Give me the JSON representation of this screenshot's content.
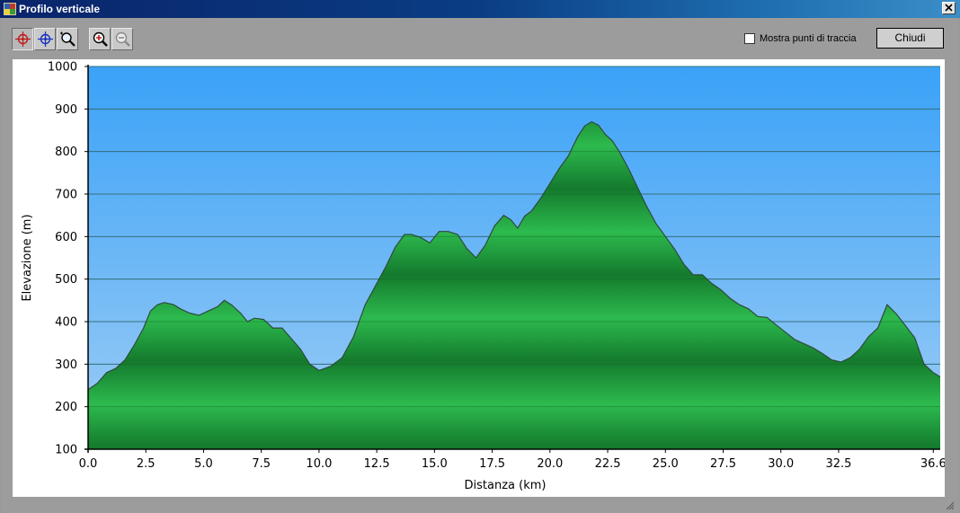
{
  "window": {
    "title": "Profilo verticale"
  },
  "toolbar": {
    "tools": [
      {
        "name": "crosshair-red-tool",
        "active": true
      },
      {
        "name": "crosshair-blue-tool",
        "active": false
      },
      {
        "name": "zoom-select-tool",
        "active": false
      },
      {
        "name": "zoom-in-tool",
        "active": false
      },
      {
        "name": "zoom-out-tool",
        "active": false
      }
    ],
    "show_points_label": "Mostra punti di traccia",
    "show_points_checked": false,
    "close_label": "Chiudi"
  },
  "colors": {
    "sky_top": "#3aa2f7",
    "sky_bottom": "#9ecdf6",
    "terrain_light": "#2dba4e",
    "terrain_dark": "#147a2d",
    "outline": "#2f4a3a"
  },
  "chart_data": {
    "type": "area",
    "xlabel": "Distanza    (km)",
    "ylabel": "Elevazione (m)",
    "xlim": [
      0,
      36.9
    ],
    "ylim": [
      100,
      1000
    ],
    "xticks": [
      "0.0",
      "2.5",
      "5.0",
      "7.5",
      "10.0",
      "12.5",
      "15.0",
      "17.5",
      "20.0",
      "22.5",
      "25.0",
      "27.5",
      "30.0",
      "32.5",
      "36.6"
    ],
    "xtick_values": [
      0,
      2.5,
      5,
      7.5,
      10,
      12.5,
      15,
      17.5,
      20,
      22.5,
      25,
      27.5,
      30,
      32.5,
      36.6
    ],
    "yticks": [
      "100",
      "200",
      "300",
      "400",
      "500",
      "600",
      "700",
      "800",
      "900",
      "1000"
    ],
    "ytick_values": [
      100,
      200,
      300,
      400,
      500,
      600,
      700,
      800,
      900,
      1000
    ],
    "grid": true,
    "x": [
      0,
      0.4,
      0.8,
      1.2,
      1.6,
      2.0,
      2.4,
      2.7,
      3.0,
      3.3,
      3.7,
      4.0,
      4.4,
      4.8,
      5.2,
      5.6,
      5.9,
      6.2,
      6.6,
      6.9,
      7.2,
      7.6,
      8.0,
      8.4,
      8.8,
      9.2,
      9.6,
      10.0,
      10.5,
      11.0,
      11.5,
      12.0,
      12.4,
      12.9,
      13.3,
      13.7,
      14.0,
      14.4,
      14.8,
      15.2,
      15.6,
      16.0,
      16.4,
      16.8,
      17.2,
      17.6,
      18.0,
      18.3,
      18.6,
      18.9,
      19.2,
      19.6,
      20.0,
      20.4,
      20.8,
      21.2,
      21.5,
      21.8,
      22.1,
      22.4,
      22.7,
      23.0,
      23.4,
      23.8,
      24.2,
      24.6,
      25.0,
      25.4,
      25.8,
      26.2,
      26.6,
      27.0,
      27.4,
      27.8,
      28.2,
      28.6,
      29.0,
      29.4,
      29.8,
      30.2,
      30.6,
      31.0,
      31.4,
      31.8,
      32.2,
      32.6,
      33.0,
      33.4,
      33.8,
      34.2,
      34.6,
      35.0,
      35.4,
      35.8,
      36.2,
      36.6,
      36.9
    ],
    "y": [
      240,
      255,
      280,
      290,
      310,
      345,
      385,
      425,
      440,
      445,
      440,
      430,
      420,
      415,
      425,
      435,
      450,
      440,
      420,
      400,
      408,
      405,
      385,
      385,
      360,
      335,
      300,
      285,
      295,
      315,
      365,
      440,
      480,
      530,
      575,
      605,
      605,
      598,
      585,
      612,
      612,
      605,
      572,
      550,
      580,
      625,
      650,
      640,
      620,
      648,
      660,
      690,
      725,
      760,
      790,
      835,
      860,
      870,
      862,
      840,
      825,
      800,
      760,
      715,
      670,
      630,
      600,
      570,
      535,
      510,
      510,
      490,
      475,
      455,
      440,
      430,
      412,
      410,
      392,
      375,
      358,
      348,
      338,
      325,
      310,
      305,
      315,
      335,
      365,
      385,
      440,
      418,
      390,
      362,
      300,
      280,
      270
    ]
  }
}
